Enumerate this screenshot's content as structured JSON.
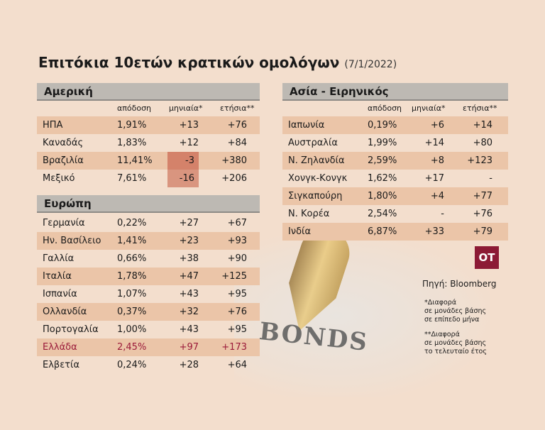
{
  "title": "Επιτόκια 10ετών κρατικών ομολόγων",
  "date": "(7/1/2022)",
  "columns": {
    "yield": "απόδοση",
    "monthly": "μηνιαία*",
    "annual": "ετήσια**"
  },
  "colors": {
    "highlight_row": "#ebc5a8",
    "negative_cell": "#d4826a",
    "greece": "#9b1b3a",
    "header_bar": "#bdb9b3",
    "logo": "#8c1a35"
  },
  "america": {
    "label": "Αμερική",
    "rows": [
      {
        "country": "ΗΠΑ",
        "yield": "1,91%",
        "monthly": "+13",
        "annual": "+76"
      },
      {
        "country": "Καναδάς",
        "yield": "1,83%",
        "monthly": "+12",
        "annual": "+84"
      },
      {
        "country": "Βραζιλία",
        "yield": "11,41%",
        "monthly": "-3",
        "annual": "+380"
      },
      {
        "country": "Μεξικό",
        "yield": "7,61%",
        "monthly": "-16",
        "annual": "+206"
      }
    ]
  },
  "europe": {
    "label": "Ευρώπη",
    "rows": [
      {
        "country": "Γερμανία",
        "yield": "0,22%",
        "monthly": "+27",
        "annual": "+67"
      },
      {
        "country": "Ην. Βασίλειο",
        "yield": "1,41%",
        "monthly": "+23",
        "annual": "+93"
      },
      {
        "country": "Γαλλία",
        "yield": "0,66%",
        "monthly": "+38",
        "annual": "+90"
      },
      {
        "country": "Ιταλία",
        "yield": "1,78%",
        "monthly": "+47",
        "annual": "+125"
      },
      {
        "country": "Ισπανία",
        "yield": "1,07%",
        "monthly": "+43",
        "annual": "+95"
      },
      {
        "country": "Ολλανδία",
        "yield": "0,37%",
        "monthly": "+32",
        "annual": "+76"
      },
      {
        "country": "Πορτογαλία",
        "yield": "1,00%",
        "monthly": "+43",
        "annual": "+95"
      },
      {
        "country": "Ελλάδα",
        "yield": "2,45%",
        "monthly": "+97",
        "annual": "+173"
      },
      {
        "country": "Ελβετία",
        "yield": "0,24%",
        "monthly": "+28",
        "annual": "+64"
      }
    ]
  },
  "asia": {
    "label": "Ασία - Ειρηνικός",
    "rows": [
      {
        "country": "Ιαπωνία",
        "yield": "0,19%",
        "monthly": "+6",
        "annual": "+14"
      },
      {
        "country": "Αυστραλία",
        "yield": "1,99%",
        "monthly": "+14",
        "annual": "+80"
      },
      {
        "country": "Ν. Ζηλανδία",
        "yield": "2,59%",
        "monthly": "+8",
        "annual": "+123"
      },
      {
        "country": "Χονγκ-Κονγκ",
        "yield": "1,62%",
        "monthly": "+17",
        "annual": "-"
      },
      {
        "country": "Σιγκαπούρη",
        "yield": "1,80%",
        "monthly": "+4",
        "annual": "+77"
      },
      {
        "country": "Ν. Κορέα",
        "yield": "2,54%",
        "monthly": "-",
        "annual": "+76"
      },
      {
        "country": "Ινδία",
        "yield": "6,87%",
        "monthly": "+33",
        "annual": "+79"
      }
    ]
  },
  "logo": "ΟΤ",
  "source": "Πηγή: Bloomberg",
  "note1": [
    "*Διαφορά",
    "σε μονάδες βάσης",
    "σε επίπεδο μήνα"
  ],
  "note2": [
    "**Διαφορά",
    "σε μονάδες βάσης",
    "το τελευταίο έτος"
  ],
  "background_text": "BONDS"
}
